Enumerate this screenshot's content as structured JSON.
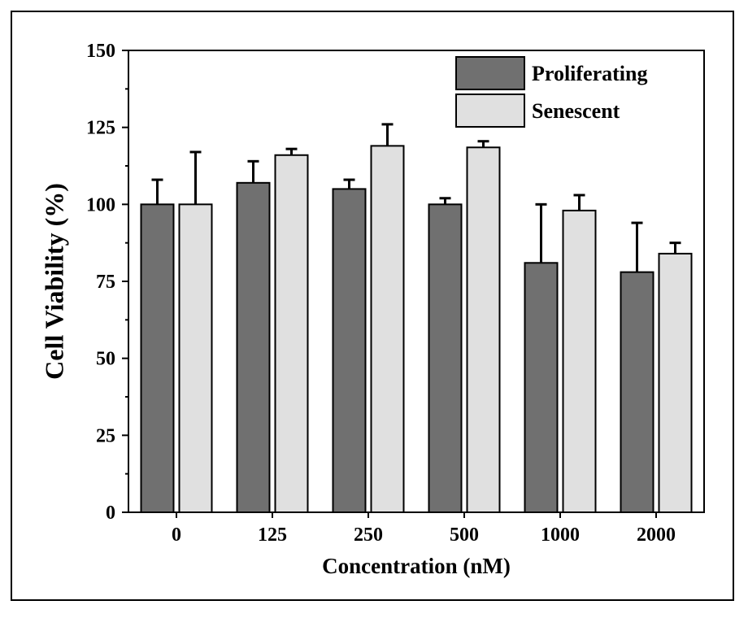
{
  "chart_data": {
    "type": "bar",
    "title": "",
    "xlabel": "Concentration (nM)",
    "ylabel": "Cell Viability (%)",
    "ylim": [
      0,
      150
    ],
    "yticks": [
      0,
      25,
      50,
      75,
      100,
      125,
      150
    ],
    "categories": [
      "0",
      "125",
      "250",
      "500",
      "1000",
      "2000"
    ],
    "series": [
      {
        "name": "Proliferating",
        "color": "#707070",
        "values": [
          100,
          107,
          105,
          100,
          81,
          78
        ],
        "errors": [
          8,
          7,
          3,
          2,
          19,
          16
        ]
      },
      {
        "name": "Senescent",
        "color": "#e0e0e0",
        "values": [
          100,
          116,
          119,
          118.5,
          98,
          84
        ],
        "errors": [
          17,
          2,
          7,
          2,
          5,
          3.5
        ]
      }
    ],
    "grid": false,
    "legend": "top-right"
  }
}
